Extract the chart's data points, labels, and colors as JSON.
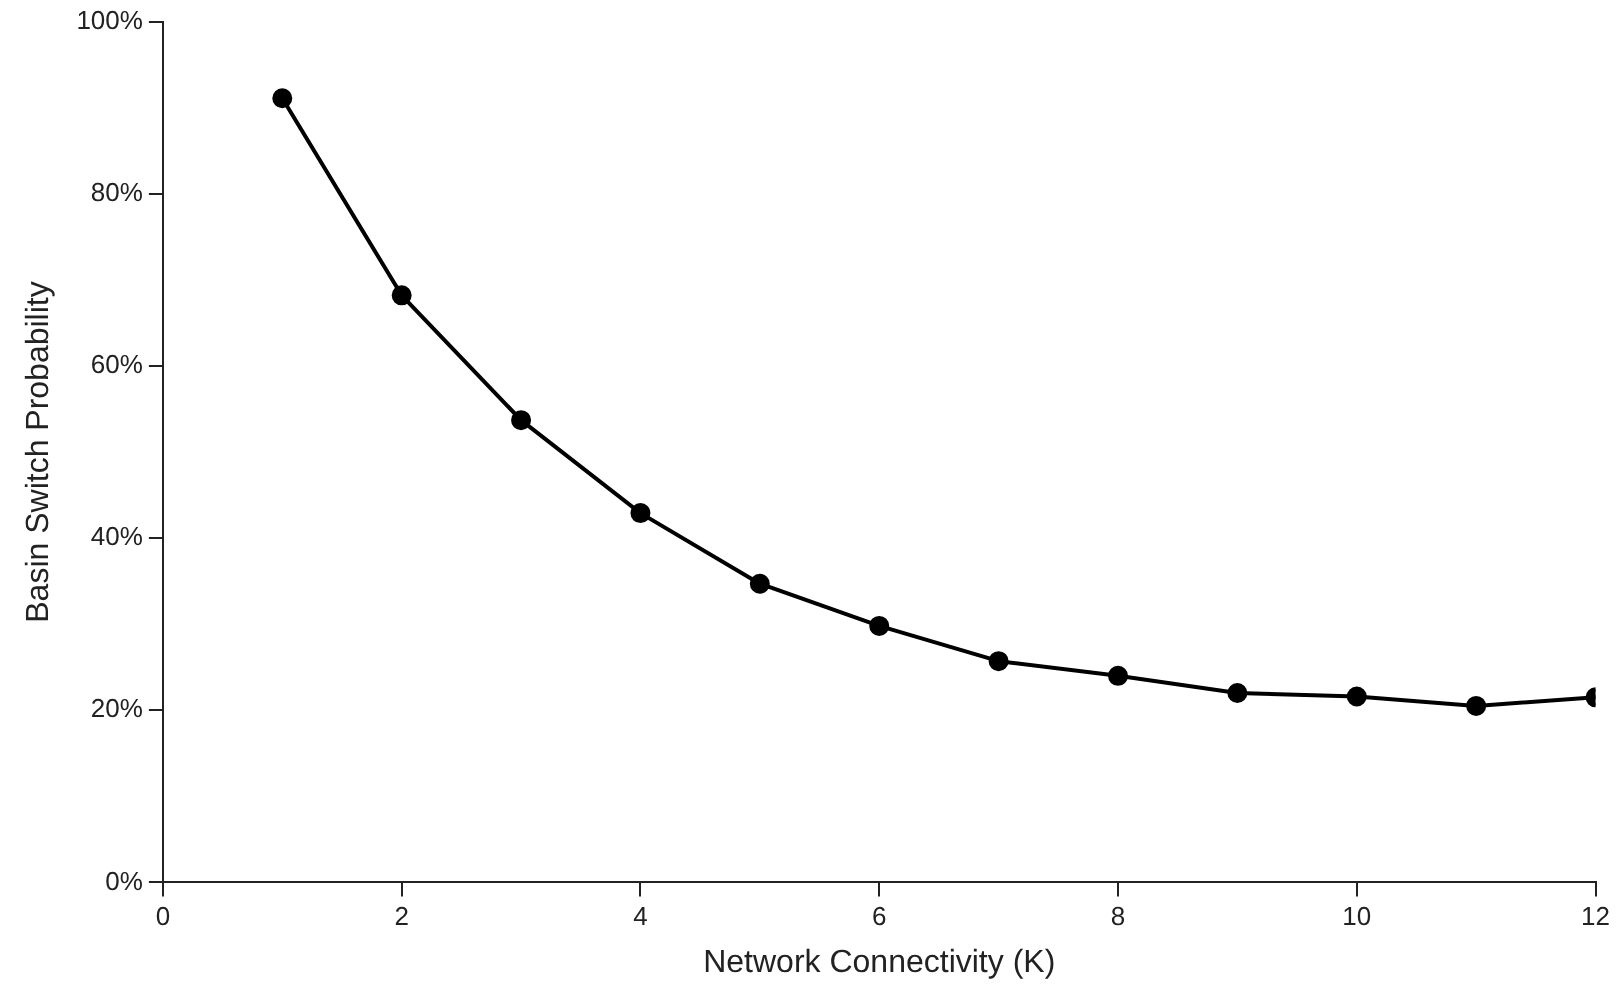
{
  "chart_data": {
    "type": "line",
    "xlabel": "Network Connectivity (K)",
    "ylabel": "Basin Switch Probability",
    "x": [
      1,
      2,
      3,
      4,
      5,
      6,
      7,
      8,
      9,
      10,
      11,
      12
    ],
    "series": [
      {
        "color": "#000000",
        "values": [
          91.1,
          68.2,
          53.7,
          42.9,
          34.7,
          29.8,
          25.7,
          24.0,
          22.0,
          21.6,
          20.5,
          21.5
        ]
      }
    ],
    "xlim": [
      0,
      12
    ],
    "xticks": [
      0,
      2,
      4,
      6,
      8,
      10,
      12
    ],
    "ylim": [
      0,
      100
    ],
    "yticks": [
      {
        "value": 0,
        "label": "0%"
      },
      {
        "value": 20,
        "label": "20%"
      },
      {
        "value": 40,
        "label": "40%"
      },
      {
        "value": 60,
        "label": "60%"
      },
      {
        "value": 80,
        "label": "80%"
      },
      {
        "value": 100,
        "label": "100%"
      }
    ],
    "grid": false,
    "legend": false,
    "marker": "circle",
    "line_style": "solid"
  }
}
